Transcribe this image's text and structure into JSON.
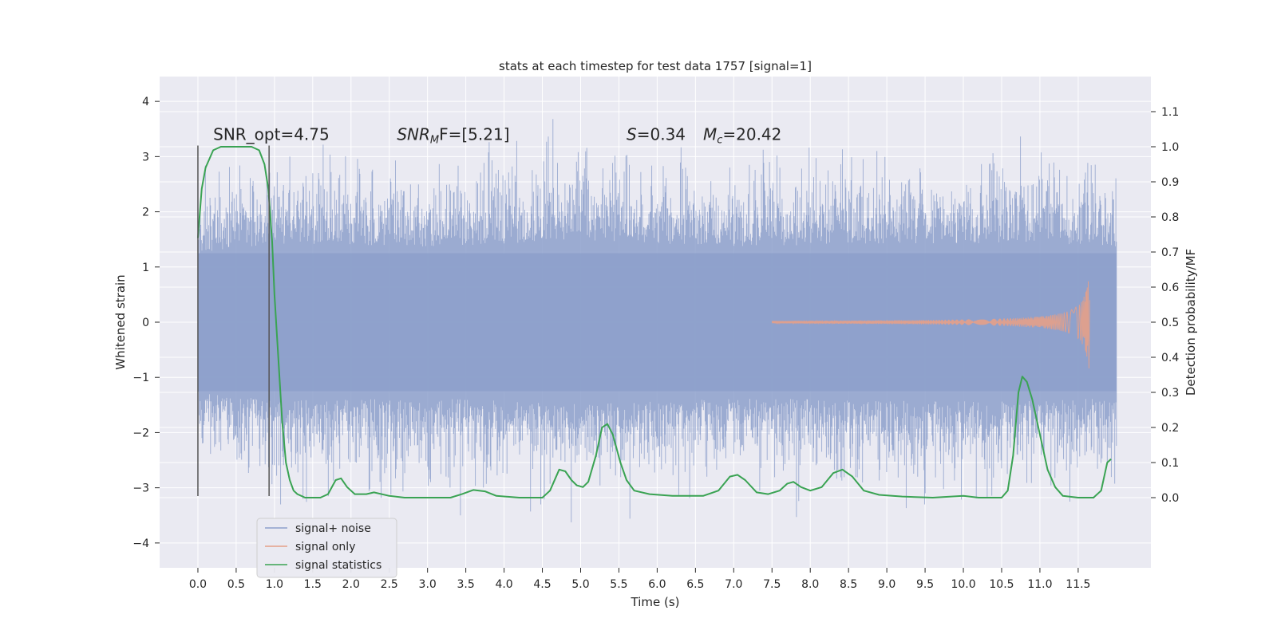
{
  "chart_data": {
    "type": "line",
    "title": "stats at each timestep for test data 1757 [signal=1]",
    "xlabel": "Time (s)",
    "ylabel_left": "Whitened strain",
    "ylabel_right": "Detection probability/MF",
    "xlim": [
      -0.5,
      12.45
    ],
    "ylim_left": [
      -4.45,
      4.45
    ],
    "ylim_right": [
      -0.2,
      1.2
    ],
    "x_ticks": [
      0.0,
      0.5,
      1.0,
      1.5,
      2.0,
      2.5,
      3.0,
      3.5,
      4.0,
      4.5,
      5.0,
      5.5,
      6.0,
      6.5,
      7.0,
      7.5,
      8.0,
      8.5,
      9.0,
      9.5,
      10.0,
      10.5,
      11.0,
      11.5
    ],
    "x_tick_labels": [
      "0.0",
      "0.5",
      "1.0",
      "1.5",
      "2.0",
      "2.5",
      "3.0",
      "3.5",
      "4.0",
      "4.5",
      "5.0",
      "5.5",
      "6.0",
      "6.5",
      "7.0",
      "7.5",
      "8.0",
      "8.5",
      "9.0",
      "9.5",
      "10.0",
      "10.5",
      "11.0",
      "11.5"
    ],
    "y_left_ticks": [
      -4,
      -3,
      -2,
      -1,
      0,
      1,
      2,
      3,
      4
    ],
    "y_left_tick_labels": [
      "−4",
      "−3",
      "−2",
      "−1",
      "0",
      "1",
      "2",
      "3",
      "4"
    ],
    "y_right_ticks": [
      0.0,
      0.1,
      0.2,
      0.3,
      0.4,
      0.5,
      0.6,
      0.7,
      0.8,
      0.9,
      1.0,
      1.1
    ],
    "y_right_tick_labels": [
      "0.0",
      "0.1",
      "0.2",
      "0.3",
      "0.4",
      "0.5",
      "0.6",
      "0.7",
      "0.8",
      "0.9",
      "1.0",
      "1.1"
    ],
    "grid": true,
    "legend_position": "lower-left",
    "series": [
      {
        "name": "signal+ noise",
        "axis": "left",
        "color": "#8da0cb",
        "kind": "noise-band",
        "x_range": [
          0.0,
          12.0
        ],
        "core_amplitude": 1.25,
        "envelope_points": [
          [
            0.0,
            2.0
          ],
          [
            1.0,
            2.3
          ],
          [
            3.0,
            2.2
          ],
          [
            5.0,
            2.4
          ],
          [
            7.0,
            2.2
          ],
          [
            9.0,
            2.3
          ],
          [
            11.0,
            2.3
          ],
          [
            12.0,
            2.2
          ]
        ]
      },
      {
        "name": "signal only",
        "axis": "left",
        "color": "#e5a088",
        "kind": "chirp",
        "x_range": [
          7.5,
          11.65
        ],
        "peak_amplitude": 1.0
      },
      {
        "name": "signal statistics",
        "axis": "right",
        "color": "#3aa353",
        "kind": "line",
        "points": [
          [
            0.0,
            0.74
          ],
          [
            0.05,
            0.88
          ],
          [
            0.1,
            0.94
          ],
          [
            0.2,
            0.99
          ],
          [
            0.3,
            1.0
          ],
          [
            0.5,
            1.0
          ],
          [
            0.7,
            1.0
          ],
          [
            0.8,
            0.99
          ],
          [
            0.87,
            0.95
          ],
          [
            0.92,
            0.88
          ],
          [
            0.97,
            0.73
          ],
          [
            1.0,
            0.58
          ],
          [
            1.05,
            0.4
          ],
          [
            1.1,
            0.22
          ],
          [
            1.15,
            0.1
          ],
          [
            1.2,
            0.05
          ],
          [
            1.25,
            0.02
          ],
          [
            1.3,
            0.01
          ],
          [
            1.4,
            0.0
          ],
          [
            1.5,
            0.0
          ],
          [
            1.6,
            0.0
          ],
          [
            1.7,
            0.01
          ],
          [
            1.8,
            0.05
          ],
          [
            1.87,
            0.055
          ],
          [
            1.95,
            0.03
          ],
          [
            2.05,
            0.01
          ],
          [
            2.2,
            0.01
          ],
          [
            2.3,
            0.015
          ],
          [
            2.5,
            0.005
          ],
          [
            2.7,
            0.0
          ],
          [
            3.0,
            0.0
          ],
          [
            3.3,
            0.0
          ],
          [
            3.45,
            0.01
          ],
          [
            3.6,
            0.022
          ],
          [
            3.75,
            0.018
          ],
          [
            3.9,
            0.005
          ],
          [
            4.2,
            0.0
          ],
          [
            4.5,
            0.0
          ],
          [
            4.6,
            0.02
          ],
          [
            4.72,
            0.08
          ],
          [
            4.8,
            0.075
          ],
          [
            4.88,
            0.05
          ],
          [
            4.95,
            0.035
          ],
          [
            5.03,
            0.03
          ],
          [
            5.1,
            0.045
          ],
          [
            5.2,
            0.12
          ],
          [
            5.28,
            0.2
          ],
          [
            5.35,
            0.21
          ],
          [
            5.42,
            0.18
          ],
          [
            5.52,
            0.1
          ],
          [
            5.6,
            0.05
          ],
          [
            5.7,
            0.02
          ],
          [
            5.9,
            0.01
          ],
          [
            6.2,
            0.005
          ],
          [
            6.6,
            0.005
          ],
          [
            6.8,
            0.02
          ],
          [
            6.95,
            0.06
          ],
          [
            7.05,
            0.065
          ],
          [
            7.15,
            0.05
          ],
          [
            7.3,
            0.015
          ],
          [
            7.45,
            0.01
          ],
          [
            7.6,
            0.02
          ],
          [
            7.7,
            0.04
          ],
          [
            7.78,
            0.045
          ],
          [
            7.88,
            0.03
          ],
          [
            8.0,
            0.02
          ],
          [
            8.15,
            0.03
          ],
          [
            8.3,
            0.07
          ],
          [
            8.42,
            0.08
          ],
          [
            8.55,
            0.06
          ],
          [
            8.7,
            0.02
          ],
          [
            8.9,
            0.008
          ],
          [
            9.2,
            0.003
          ],
          [
            9.6,
            0.0
          ],
          [
            10.0,
            0.005
          ],
          [
            10.2,
            0.0
          ],
          [
            10.5,
            0.0
          ],
          [
            10.58,
            0.02
          ],
          [
            10.65,
            0.12
          ],
          [
            10.72,
            0.3
          ],
          [
            10.77,
            0.345
          ],
          [
            10.83,
            0.33
          ],
          [
            10.9,
            0.28
          ],
          [
            11.0,
            0.18
          ],
          [
            11.1,
            0.08
          ],
          [
            11.2,
            0.03
          ],
          [
            11.3,
            0.005
          ],
          [
            11.5,
            0.0
          ],
          [
            11.7,
            0.0
          ],
          [
            11.8,
            0.02
          ],
          [
            11.88,
            0.1
          ],
          [
            11.93,
            0.11
          ]
        ]
      }
    ],
    "vertical_lines": [
      {
        "x": 0.0,
        "y_from": -3.15,
        "y_to": 3.2,
        "color": "#555555"
      },
      {
        "x": 0.93,
        "y_from": -3.15,
        "y_to": 3.2,
        "color": "#555555"
      }
    ],
    "annotations": [
      {
        "text": "SNR_opt=4.75",
        "x": 0.2,
        "y": 3.3
      },
      {
        "text": "SNR",
        "sub": "M",
        "tail": "F=[5.21]",
        "italic": true,
        "x": 2.6,
        "y": 3.3
      },
      {
        "text": "S",
        "tail": "=0.34",
        "italic": true,
        "x": 5.6,
        "y": 3.3
      },
      {
        "text": "M",
        "sub": "c",
        "tail": "=20.42",
        "italic": true,
        "x": 6.6,
        "y": 3.3
      }
    ]
  }
}
